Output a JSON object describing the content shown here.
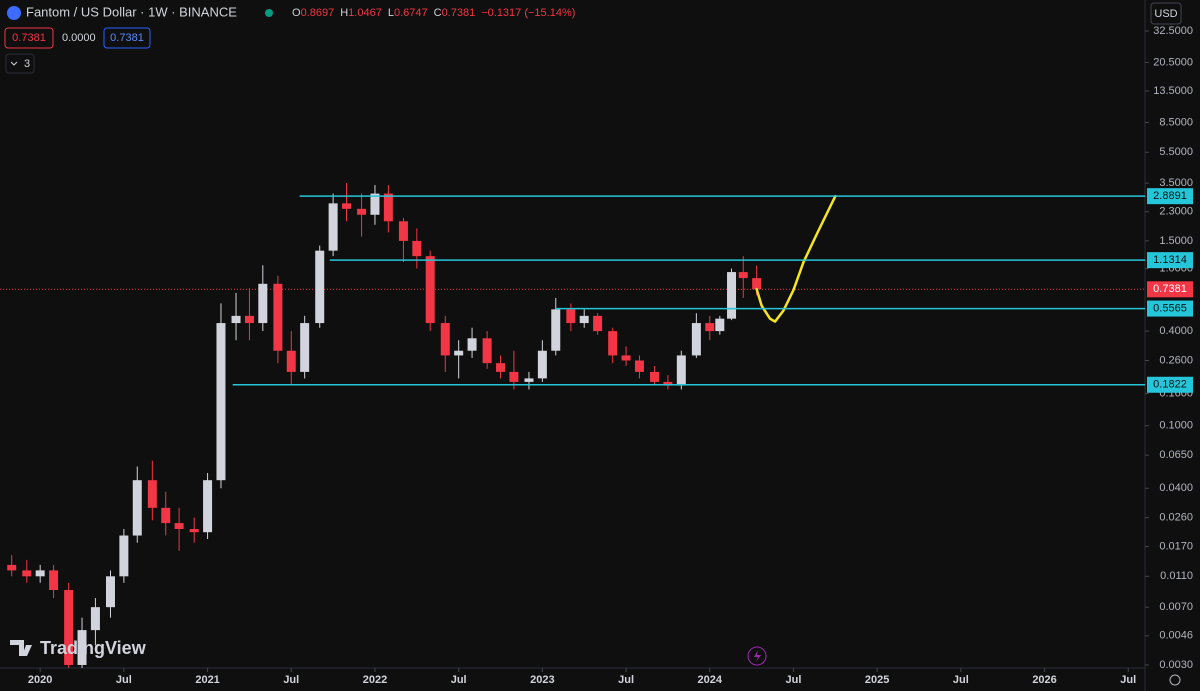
{
  "chart_data": {
    "type": "candlestick",
    "title": "Fantom / US Dollar · 1W · BINANCE",
    "ohlc_prefixes": [
      "O",
      "H",
      "L",
      "C"
    ],
    "change": "−0.1317 (−15.14%)",
    "spread": "0.0000",
    "currency": "USD",
    "indicator_count": "3",
    "brand": "TradingView",
    "log_scale": true,
    "up_color": "#d1d4dc",
    "down_color": "#f23645",
    "x": [
      2019.83,
      2019.92,
      2020.0,
      2020.08,
      2020.17,
      2020.25,
      2020.33,
      2020.42,
      2020.5,
      2020.58,
      2020.67,
      2020.75,
      2020.83,
      2020.92,
      2021.0,
      2021.08,
      2021.17,
      2021.25,
      2021.33,
      2021.42,
      2021.5,
      2021.58,
      2021.67,
      2021.75,
      2021.83,
      2021.92,
      2022.0,
      2022.08,
      2022.17,
      2022.25,
      2022.33,
      2022.42,
      2022.5,
      2022.58,
      2022.67,
      2022.75,
      2022.83,
      2022.92,
      2023.0,
      2023.08,
      2023.17,
      2023.25,
      2023.33,
      2023.42,
      2023.5,
      2023.58,
      2023.67,
      2023.75,
      2023.83,
      2023.92,
      2024.0,
      2024.06,
      2024.13,
      2024.2,
      2024.28
    ],
    "open": [
      0.013,
      0.012,
      0.011,
      0.012,
      0.009,
      0.003,
      0.005,
      0.007,
      0.011,
      0.02,
      0.045,
      0.03,
      0.024,
      0.022,
      0.021,
      0.045,
      0.45,
      0.5,
      0.45,
      0.8,
      0.3,
      0.22,
      0.45,
      1.3,
      2.6,
      2.4,
      2.2,
      3.0,
      2.0,
      1.5,
      1.2,
      0.45,
      0.28,
      0.3,
      0.36,
      0.25,
      0.22,
      0.19,
      0.2,
      0.3,
      0.55,
      0.45,
      0.5,
      0.4,
      0.28,
      0.26,
      0.22,
      0.19,
      0.18,
      0.28,
      0.45,
      0.4,
      0.48,
      0.95,
      0.8697
    ],
    "high": [
      0.015,
      0.014,
      0.013,
      0.013,
      0.01,
      0.006,
      0.008,
      0.012,
      0.022,
      0.055,
      0.06,
      0.038,
      0.03,
      0.026,
      0.05,
      0.6,
      0.7,
      0.75,
      1.05,
      0.9,
      0.4,
      0.5,
      1.4,
      3.0,
      3.5,
      3.0,
      3.4,
      3.4,
      2.1,
      1.8,
      1.3,
      0.5,
      0.35,
      0.42,
      0.4,
      0.28,
      0.3,
      0.22,
      0.35,
      0.65,
      0.6,
      0.55,
      0.52,
      0.42,
      0.32,
      0.28,
      0.24,
      0.21,
      0.3,
      0.52,
      0.5,
      0.5,
      1.0,
      1.2,
      1.0467
    ],
    "low": [
      0.011,
      0.01,
      0.01,
      0.008,
      0.0025,
      0.0028,
      0.004,
      0.006,
      0.01,
      0.018,
      0.025,
      0.02,
      0.016,
      0.018,
      0.019,
      0.04,
      0.35,
      0.35,
      0.4,
      0.25,
      0.18,
      0.2,
      0.42,
      1.2,
      2.0,
      1.6,
      1.9,
      1.7,
      1.1,
      1.0,
      0.4,
      0.22,
      0.2,
      0.27,
      0.23,
      0.2,
      0.17,
      0.17,
      0.19,
      0.28,
      0.4,
      0.42,
      0.38,
      0.25,
      0.24,
      0.2,
      0.18,
      0.17,
      0.17,
      0.27,
      0.35,
      0.38,
      0.47,
      0.65,
      0.6747
    ],
    "close": [
      0.012,
      0.011,
      0.012,
      0.009,
      0.003,
      0.005,
      0.007,
      0.011,
      0.02,
      0.045,
      0.03,
      0.024,
      0.022,
      0.021,
      0.045,
      0.45,
      0.5,
      0.45,
      0.8,
      0.3,
      0.22,
      0.45,
      1.3,
      2.6,
      2.4,
      2.2,
      3.0,
      2.0,
      1.5,
      1.2,
      0.45,
      0.28,
      0.3,
      0.36,
      0.25,
      0.22,
      0.19,
      0.2,
      0.3,
      0.55,
      0.45,
      0.5,
      0.4,
      0.28,
      0.26,
      0.22,
      0.19,
      0.18,
      0.28,
      0.45,
      0.4,
      0.48,
      0.95,
      0.87,
      0.7381
    ],
    "xlim": [
      2019.76,
      2026.6
    ],
    "xticks": [
      {
        "value": 2020,
        "label": "2020"
      },
      {
        "value": 2020.5,
        "label": "Jul"
      },
      {
        "value": 2021,
        "label": "2021"
      },
      {
        "value": 2021.5,
        "label": "Jul"
      },
      {
        "value": 2022,
        "label": "2022"
      },
      {
        "value": 2022.5,
        "label": "Jul"
      },
      {
        "value": 2023,
        "label": "2023"
      },
      {
        "value": 2023.5,
        "label": "Jul"
      },
      {
        "value": 2024,
        "label": "2024"
      },
      {
        "value": 2024.5,
        "label": "Jul"
      },
      {
        "value": 2025,
        "label": "2025"
      },
      {
        "value": 2025.5,
        "label": "Jul"
      },
      {
        "value": 2026,
        "label": "2026"
      },
      {
        "value": 2026.5,
        "label": "Jul"
      }
    ],
    "ylim": [
      0.00287,
      51.2
    ],
    "yticks": [
      {
        "value": 32.5,
        "label": "32.5000"
      },
      {
        "value": 20.5,
        "label": "20.5000"
      },
      {
        "value": 13.5,
        "label": "13.5000"
      },
      {
        "value": 8.5,
        "label": "8.5000"
      },
      {
        "value": 5.5,
        "label": "5.5000"
      },
      {
        "value": 3.5,
        "label": "3.5000"
      },
      {
        "value": 2.3,
        "label": "2.3000"
      },
      {
        "value": 1.5,
        "label": "1.5000"
      },
      {
        "value": 1,
        "label": "1.0000"
      },
      {
        "value": 0.4,
        "label": "0.4000"
      },
      {
        "value": 0.26,
        "label": "0.2600"
      },
      {
        "value": 0.16,
        "label": "0.1600"
      },
      {
        "value": 0.1,
        "label": "0.1000"
      },
      {
        "value": 0.065,
        "label": "0.0650"
      },
      {
        "value": 0.04,
        "label": "0.0400"
      },
      {
        "value": 0.026,
        "label": "0.0260"
      },
      {
        "value": 0.017,
        "label": "0.0170"
      },
      {
        "value": 0.011,
        "label": "0.0110"
      },
      {
        "value": 0.007,
        "label": "0.0070"
      },
      {
        "value": 0.0046,
        "label": "0.0046"
      },
      {
        "value": 0.003,
        "label": "0.0030"
      }
    ],
    "level_color": "#26c6da",
    "levels": [
      {
        "value": 2.8891,
        "start": 2021.55
      },
      {
        "value": 1.1314,
        "start": 2021.73
      },
      {
        "value": 0.5565,
        "start": 2023.08
      },
      {
        "value": 0.1822,
        "start": 2021.15
      }
    ],
    "projection": {
      "color": "#f5e61f",
      "x": [
        2024.28,
        2024.31,
        2024.36,
        2024.39,
        2024.44,
        2024.5,
        2024.56,
        2024.65,
        2024.75
      ],
      "y": [
        0.74,
        0.58,
        0.48,
        0.46,
        0.54,
        0.73,
        1.1,
        1.75,
        2.89
      ]
    }
  }
}
